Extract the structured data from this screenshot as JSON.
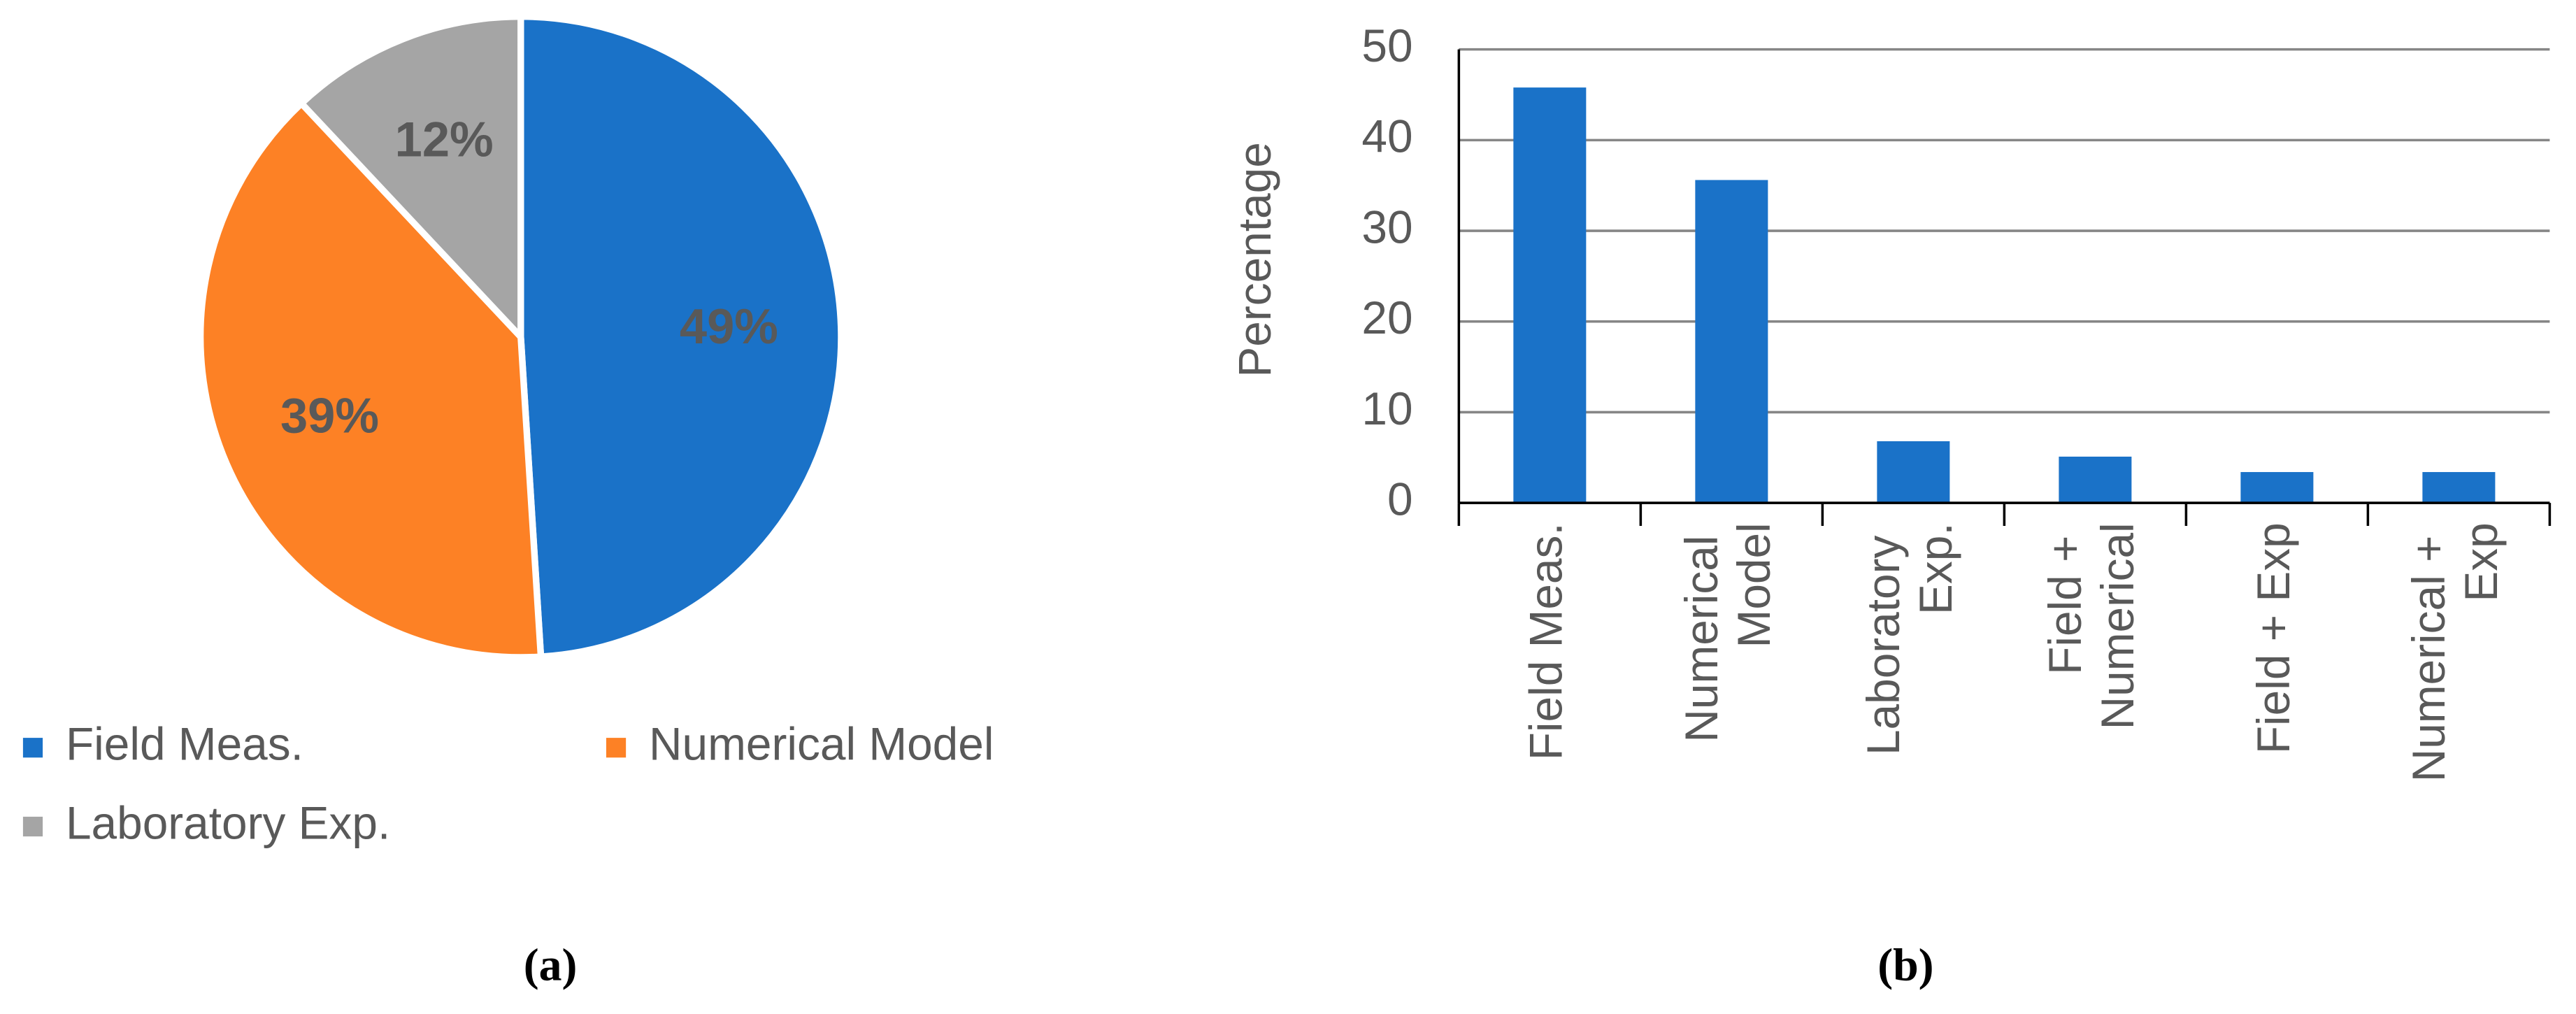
{
  "chart_data": [
    {
      "type": "pie",
      "caption": "(a)",
      "categories": [
        "Field Meas.",
        "Numerical Model",
        "Laboratory Exp."
      ],
      "values": [
        49,
        39,
        12
      ],
      "value_labels": [
        "49%",
        "39%",
        "12%"
      ],
      "colors": [
        "#1a72c8",
        "#fd8125",
        "#a5a5a5"
      ]
    },
    {
      "type": "bar",
      "caption": "(b)",
      "ylabel": "Percentage",
      "categories": [
        "Field Meas.",
        "Numerical Model",
        "Laboratory Exp.",
        "Field + Numerical",
        "Field + Exp",
        "Numerical + Exp"
      ],
      "values": [
        45.8,
        35.6,
        6.8,
        5.1,
        3.4,
        3.4
      ],
      "color": "#1a72c8",
      "ylim": [
        0,
        50
      ],
      "yticks": [
        0,
        10,
        20,
        30,
        40,
        50
      ],
      "grid": true
    }
  ]
}
